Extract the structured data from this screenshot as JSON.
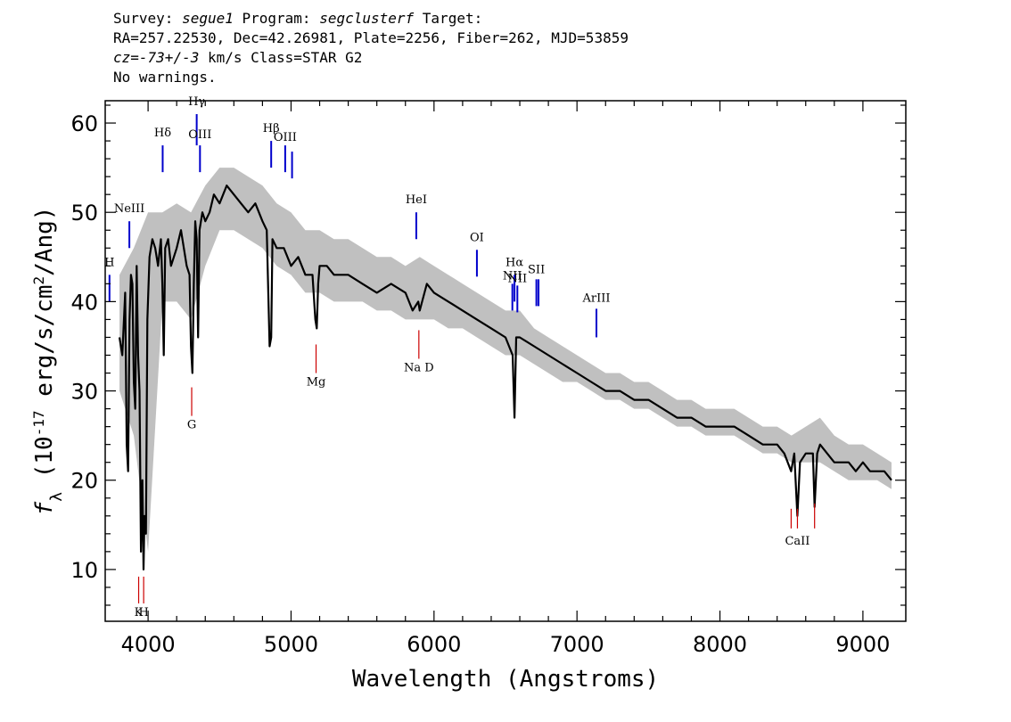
{
  "header": {
    "line1_a": "Survey: ",
    "survey": "segue1",
    "line1_b": " Program: ",
    "program": "segclusterf",
    "line1_c": " Target:",
    "line2": "RA=257.22530, Dec=42.26981, Plate=2256, Fiber=262, MJD=53859",
    "cz_label": "cz",
    "line3_a": "=",
    "cz_value": "-73+/-3",
    "line3_b": " km/s Class=STAR G2",
    "line4": "No warnings."
  },
  "chart_data": {
    "type": "line",
    "xlabel": "Wavelength (Angstroms)",
    "ylabel": "f_λ (10^-17 erg/s/cm^2/Ang)",
    "ylabel_parts": {
      "f": "f",
      "sub": "λ",
      "open": " (10",
      "exp1": "-17",
      "mid": " erg/s/cm",
      "exp2": "2",
      "close": "/Ang)"
    },
    "xlim": [
      3700,
      9300
    ],
    "ylim": [
      4.2,
      62.5
    ],
    "x_ticks": [
      4000,
      5000,
      6000,
      7000,
      8000,
      9000
    ],
    "x_tick_labels": [
      "4000",
      "5000",
      "6000",
      "7000",
      "8000",
      "9000"
    ],
    "y_ticks": [
      10,
      20,
      30,
      40,
      50,
      60
    ],
    "y_tick_labels": [
      "10",
      "20",
      "30",
      "40",
      "50",
      "60"
    ],
    "series": [
      {
        "color": "#000000",
        "x": [
          3800,
          3820,
          3840,
          3850,
          3860,
          3870,
          3880,
          3890,
          3900,
          3910,
          3920,
          3930,
          3940,
          3950,
          3960,
          3968,
          3975,
          3985,
          3995,
          4010,
          4030,
          4050,
          4070,
          4090,
          4100,
          4110,
          4120,
          4140,
          4160,
          4200,
          4230,
          4250,
          4270,
          4290,
          4300,
          4310,
          4320,
          4330,
          4340,
          4350,
          4360,
          4380,
          4400,
          4430,
          4460,
          4500,
          4550,
          4600,
          4650,
          4700,
          4750,
          4800,
          4830,
          4850,
          4861,
          4870,
          4900,
          4950,
          5000,
          5050,
          5100,
          5150,
          5170,
          5180,
          5190,
          5200,
          5250,
          5300,
          5400,
          5500,
          5600,
          5700,
          5800,
          5850,
          5890,
          5900,
          5950,
          6000,
          6100,
          6200,
          6300,
          6400,
          6500,
          6550,
          6563,
          6575,
          6600,
          6700,
          6800,
          6900,
          7000,
          7100,
          7200,
          7300,
          7400,
          7500,
          7600,
          7700,
          7800,
          7900,
          8000,
          8100,
          8200,
          8300,
          8400,
          8450,
          8498,
          8520,
          8542,
          8560,
          8600,
          8650,
          8662,
          8680,
          8700,
          8750,
          8800,
          8850,
          8900,
          8950,
          9000,
          9050,
          9100,
          9150,
          9200
        ],
        "y": [
          36,
          34,
          41,
          24,
          21,
          38,
          43,
          42,
          31,
          28,
          44,
          34,
          30,
          12,
          20,
          10,
          16,
          14,
          38,
          45,
          47,
          46,
          44,
          47,
          42,
          34,
          46,
          47,
          44,
          46,
          48,
          46,
          44,
          43,
          35,
          32,
          42,
          49,
          47,
          36,
          48,
          50,
          49,
          50,
          52,
          51,
          53,
          52,
          51,
          50,
          51,
          49,
          48,
          35,
          36,
          47,
          46,
          46,
          44,
          45,
          43,
          43,
          38,
          37,
          42,
          44,
          44,
          43,
          43,
          42,
          41,
          42,
          41,
          39,
          40,
          39,
          42,
          41,
          40,
          39,
          38,
          37,
          36,
          34,
          27,
          36,
          36,
          35,
          34,
          33,
          32,
          31,
          30,
          30,
          29,
          29,
          28,
          27,
          27,
          26,
          26,
          26,
          25,
          24,
          24,
          23,
          21,
          23,
          16,
          22,
          23,
          23,
          17,
          23,
          24,
          23,
          22,
          22,
          22,
          21,
          22,
          21,
          21,
          21,
          20
        ]
      },
      {
        "color": "#c0c0c0",
        "x": [
          3800,
          3900,
          4000,
          4100,
          4200,
          4300,
          4400,
          4500,
          4600,
          4700,
          4800,
          4900,
          5000,
          5100,
          5200,
          5300,
          5400,
          5500,
          5600,
          5700,
          5800,
          5900,
          6000,
          6100,
          6200,
          6300,
          6400,
          6500,
          6600,
          6700,
          6800,
          6900,
          7000,
          7100,
          7200,
          7300,
          7400,
          7500,
          7600,
          7700,
          7800,
          7900,
          8000,
          8100,
          8200,
          8300,
          8400,
          8500,
          8600,
          8700,
          8800,
          8900,
          9000,
          9100,
          9200
        ],
        "y_upper": [
          43,
          46,
          50,
          50,
          51,
          50,
          53,
          55,
          55,
          54,
          53,
          51,
          50,
          48,
          48,
          47,
          47,
          46,
          45,
          45,
          44,
          45,
          44,
          43,
          42,
          41,
          40,
          39,
          39,
          37,
          36,
          35,
          34,
          33,
          32,
          32,
          31,
          31,
          30,
          29,
          29,
          28,
          28,
          28,
          27,
          26,
          26,
          25,
          26,
          27,
          25,
          24,
          24,
          23,
          22
        ],
        "y_lower": [
          30,
          25,
          12,
          40,
          40,
          38,
          44,
          48,
          48,
          47,
          46,
          44,
          43,
          41,
          41,
          40,
          40,
          40,
          39,
          39,
          38,
          38,
          38,
          37,
          37,
          36,
          35,
          34,
          34,
          33,
          32,
          31,
          31,
          30,
          29,
          29,
          28,
          28,
          27,
          26,
          26,
          25,
          25,
          25,
          24,
          23,
          23,
          22,
          22,
          22,
          21,
          20,
          20,
          20,
          19
        ]
      }
    ],
    "emission_lines": [
      {
        "label": "NeIII",
        "x": 3869,
        "y0": 46,
        "y1": 49,
        "label_y": 50,
        "color": "#0000cc"
      },
      {
        "label": "H",
        "x": 3730,
        "y0": 40,
        "y1": 43,
        "label_y": 44,
        "color": "#0000cc"
      },
      {
        "label": "Hδ",
        "x": 4102,
        "y0": 54.5,
        "y1": 57.5,
        "label_y": 58.5,
        "color": "#0000cc"
      },
      {
        "label": "Hγ",
        "x": 4340,
        "y0": 57.5,
        "y1": 61,
        "label_y": 62,
        "color": "#0000cc"
      },
      {
        "label": "OIII",
        "x": 4363,
        "y0": 54.5,
        "y1": 57.5,
        "label_y": 58.3,
        "color": "#0000cc"
      },
      {
        "label": "Hβ",
        "x": 4861,
        "y0": 55,
        "y1": 58,
        "label_y": 59,
        "color": "#0000cc"
      },
      {
        "label": "OIII",
        "x": 4959,
        "y0": 54.5,
        "y1": 57.5,
        "label_y": 58,
        "color": "#0000cc"
      },
      {
        "label": "",
        "x": 5007,
        "y0": 53.8,
        "y1": 56.8,
        "label_y": 0,
        "color": "#0000cc"
      },
      {
        "label": "HeI",
        "x": 5876,
        "y0": 47,
        "y1": 50,
        "label_y": 51,
        "color": "#0000cc"
      },
      {
        "label": "OI",
        "x": 6300,
        "y0": 42.8,
        "y1": 45.8,
        "label_y": 46.8,
        "color": "#0000cc"
      },
      {
        "label": "NII",
        "x": 6548,
        "y0": 39,
        "y1": 42,
        "label_y": 42.5,
        "color": "#0000cc"
      },
      {
        "label": "Hα",
        "x": 6563,
        "y0": 40,
        "y1": 43,
        "label_y": 44,
        "color": "#0000cc"
      },
      {
        "label": "NII",
        "x": 6583,
        "y0": 38.8,
        "y1": 41.8,
        "label_y": 42.2,
        "color": "#0000cc"
      },
      {
        "label": "SII",
        "x": 6716,
        "y0": 39.5,
        "y1": 42.5,
        "label_y": 43.2,
        "color": "#0000cc"
      },
      {
        "label": "",
        "x": 6731,
        "y0": 39.5,
        "y1": 42.5,
        "label_y": 0,
        "color": "#0000cc"
      },
      {
        "label": "ArIII",
        "x": 7136,
        "y0": 36,
        "y1": 39.2,
        "label_y": 40,
        "color": "#0000cc"
      }
    ],
    "absorption_lines": [
      {
        "label": "K",
        "x": 3934,
        "y0": 6.2,
        "y1": 9.2,
        "label_y": 4.8,
        "color": "#cc0000"
      },
      {
        "label": "H",
        "x": 3969,
        "y0": 6.2,
        "y1": 9.2,
        "label_y": 4.8,
        "color": "#cc0000"
      },
      {
        "label": "G",
        "x": 4305,
        "y0": 27.2,
        "y1": 30.4,
        "label_y": 25.8,
        "color": "#cc0000"
      },
      {
        "label": "Mg",
        "x": 5175,
        "y0": 32,
        "y1": 35.2,
        "label_y": 30.6,
        "color": "#cc0000"
      },
      {
        "label": "Na  D",
        "x": 5894,
        "y0": 33.6,
        "y1": 36.8,
        "label_y": 32.2,
        "color": "#cc0000"
      },
      {
        "label": "",
        "x": 8498,
        "y0": 14.6,
        "y1": 16.8,
        "label_y": 0,
        "color": "#cc0000"
      },
      {
        "label": "CaII",
        "x": 8542,
        "y0": 14.6,
        "y1": 16.8,
        "label_y": 12.8,
        "color": "#cc0000"
      },
      {
        "label": "",
        "x": 8662,
        "y0": 14.6,
        "y1": 17.4,
        "label_y": 0,
        "color": "#cc0000"
      }
    ]
  }
}
